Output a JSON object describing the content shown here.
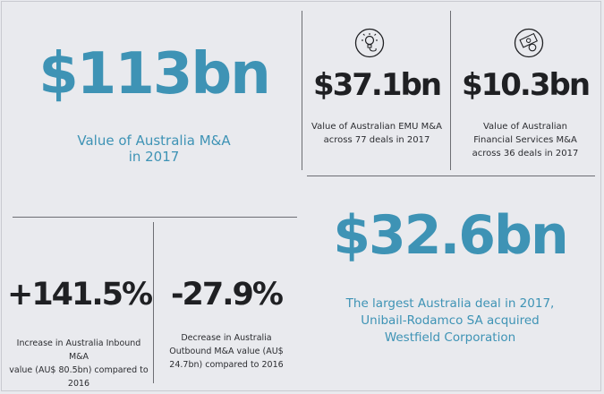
{
  "panels": {
    "total": {
      "value": "$113bn",
      "caption_line1": "Value of Australia M&A",
      "caption_line2": "in 2017"
    },
    "emu": {
      "icon": "lightbulb-icon",
      "value": "$37.1bn",
      "caption_line1": "Value of Australian EMU M&A",
      "caption_line2": "across 77 deals in 2017"
    },
    "financial": {
      "icon": "banknote-coin-icon",
      "value": "$10.3bn",
      "caption_line1": "Value of Australian",
      "caption_line2": "Financial Services M&A",
      "caption_line3": "across 36 deals in 2017"
    },
    "inbound": {
      "value": "+141.5%",
      "caption_line1": "Increase in Australia Inbound M&A",
      "caption_line2": "value (AU$ 80.5bn) compared to",
      "caption_line3": "2016"
    },
    "outbound": {
      "value": "-27.9%",
      "caption_line1": "Decrease in Australia",
      "caption_line2": "Outbound M&A value (AU$",
      "caption_line3": "24.7bn) compared to 2016"
    },
    "largest": {
      "value": "$32.6bn",
      "caption_line1": "The largest Australia deal in 2017,",
      "caption_line2": "Unibail-Rodamco SA acquired",
      "caption_line3": "Westfield Corporation"
    }
  },
  "colors": {
    "accent_blue": "#3e93b5",
    "dark_text": "#1f2023",
    "background": "#e9eaee",
    "divider": "#6d6e73"
  }
}
